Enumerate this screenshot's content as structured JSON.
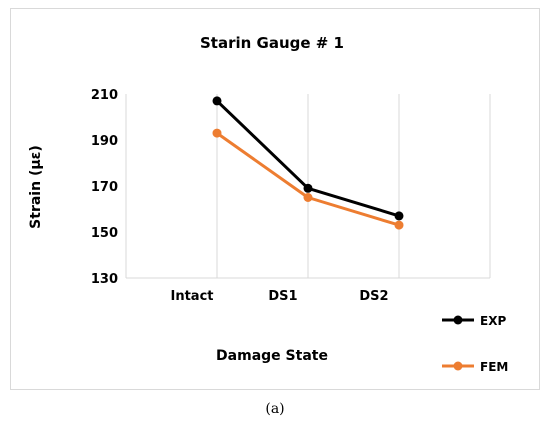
{
  "chart_data": {
    "type": "line",
    "title": "Starin Gauge # 1",
    "xlabel": "Damage State",
    "ylabel": "Strain (με)",
    "categories": [
      "Intact",
      "DS1",
      "DS2"
    ],
    "series": [
      {
        "name": "EXP",
        "color": "#000000",
        "values": [
          207,
          169,
          157
        ]
      },
      {
        "name": "FEM",
        "color": "#ed7d31",
        "values": [
          193,
          165,
          153
        ]
      }
    ],
    "ylim": [
      130,
      210
    ],
    "yticks": [
      130,
      150,
      170,
      190,
      210
    ],
    "grid": "vertical",
    "legend": "bottom-right"
  },
  "caption": "(a)"
}
